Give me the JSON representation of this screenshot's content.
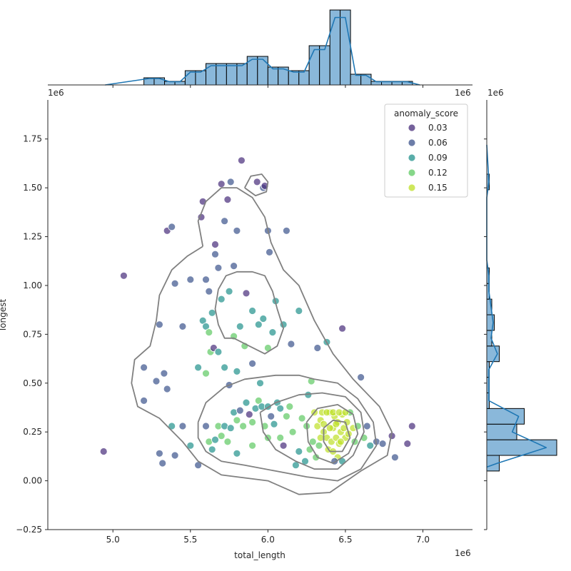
{
  "chart_data": {
    "type": "scatter",
    "kind": "jointplot",
    "xlabel": "total_length",
    "ylabel": "longest",
    "x_offset_label": "1e6",
    "y_offset_label": "1e6",
    "xlim": [
      4.58,
      7.32
    ],
    "ylim": [
      -0.25,
      1.95
    ],
    "x_ticks": [
      5.0,
      5.5,
      6.0,
      6.5,
      7.0
    ],
    "x_tick_labels": [
      "5.0",
      "5.5",
      "6.0",
      "6.5",
      "7.0"
    ],
    "y_ticks": [
      -0.25,
      0.0,
      0.25,
      0.5,
      0.75,
      1.0,
      1.25,
      1.5,
      1.75
    ],
    "y_tick_labels": [
      "−0.25",
      "0.00",
      "0.25",
      "0.50",
      "0.75",
      "1.00",
      "1.25",
      "1.50",
      "1.75"
    ],
    "hue_title": "anomaly_score",
    "legend_placement": "top-right",
    "legend": [
      {
        "label": "0.03",
        "color": "#472c7a"
      },
      {
        "label": "0.06",
        "color": "#3b528b"
      },
      {
        "label": "0.09",
        "color": "#21918c"
      },
      {
        "label": "0.12",
        "color": "#5ec962"
      },
      {
        "label": "0.15",
        "color": "#bddf26"
      }
    ],
    "points": [
      [
        4.94,
        0.15,
        0.03
      ],
      [
        5.07,
        1.05,
        0.03
      ],
      [
        5.3,
        0.8,
        0.06
      ],
      [
        5.35,
        1.28,
        0.03
      ],
      [
        5.38,
        1.3,
        0.06
      ],
      [
        5.4,
        1.01,
        0.06
      ],
      [
        5.45,
        0.79,
        0.06
      ],
      [
        5.5,
        1.03,
        0.06
      ],
      [
        5.57,
        1.35,
        0.03
      ],
      [
        5.58,
        1.43,
        0.03
      ],
      [
        5.6,
        1.03,
        0.06
      ],
      [
        5.62,
        0.97,
        0.06
      ],
      [
        5.64,
        0.86,
        0.09
      ],
      [
        5.66,
        1.16,
        0.06
      ],
      [
        5.66,
        1.21,
        0.03
      ],
      [
        5.68,
        1.09,
        0.06
      ],
      [
        5.7,
        1.52,
        0.03
      ],
      [
        5.72,
        1.33,
        0.06
      ],
      [
        5.74,
        1.44,
        0.03
      ],
      [
        5.76,
        1.53,
        0.06
      ],
      [
        5.78,
        1.1,
        0.06
      ],
      [
        5.8,
        1.28,
        0.06
      ],
      [
        5.83,
        1.64,
        0.03
      ],
      [
        5.86,
        0.96,
        0.03
      ],
      [
        5.93,
        1.53,
        0.03
      ],
      [
        5.97,
        1.5,
        0.06
      ],
      [
        5.98,
        1.51,
        0.03
      ],
      [
        6.0,
        1.28,
        0.06
      ],
      [
        6.01,
        1.17,
        0.06
      ],
      [
        6.12,
        1.28,
        0.06
      ],
      [
        5.7,
        0.93,
        0.09
      ],
      [
        5.75,
        0.97,
        0.09
      ],
      [
        5.78,
        0.74,
        0.12
      ],
      [
        5.82,
        0.79,
        0.09
      ],
      [
        5.85,
        0.69,
        0.12
      ],
      [
        5.9,
        0.87,
        0.09
      ],
      [
        5.94,
        0.8,
        0.09
      ],
      [
        5.97,
        0.83,
        0.09
      ],
      [
        6.0,
        0.68,
        0.12
      ],
      [
        6.03,
        0.76,
        0.09
      ],
      [
        6.05,
        0.92,
        0.09
      ],
      [
        6.1,
        0.8,
        0.09
      ],
      [
        6.15,
        0.7,
        0.06
      ],
      [
        6.2,
        0.87,
        0.09
      ],
      [
        6.32,
        0.68,
        0.06
      ],
      [
        6.38,
        0.71,
        0.09
      ],
      [
        6.48,
        0.78,
        0.03
      ],
      [
        5.58,
        0.82,
        0.09
      ],
      [
        5.6,
        0.79,
        0.09
      ],
      [
        5.62,
        0.76,
        0.12
      ],
      [
        5.63,
        0.66,
        0.12
      ],
      [
        5.65,
        0.68,
        0.03
      ],
      [
        5.68,
        0.66,
        0.09
      ],
      [
        5.72,
        0.58,
        0.09
      ],
      [
        5.75,
        0.49,
        0.06
      ],
      [
        5.8,
        0.56,
        0.09
      ],
      [
        5.9,
        0.6,
        0.06
      ],
      [
        5.95,
        0.5,
        0.09
      ],
      [
        5.2,
        0.58,
        0.06
      ],
      [
        5.2,
        0.41,
        0.06
      ],
      [
        5.28,
        0.51,
        0.06
      ],
      [
        5.33,
        0.55,
        0.06
      ],
      [
        5.35,
        0.47,
        0.06
      ],
      [
        5.3,
        0.14,
        0.06
      ],
      [
        5.32,
        0.09,
        0.06
      ],
      [
        5.38,
        0.28,
        0.09
      ],
      [
        5.4,
        0.13,
        0.06
      ],
      [
        5.45,
        0.28,
        0.06
      ],
      [
        5.5,
        0.18,
        0.09
      ],
      [
        5.55,
        0.08,
        0.06
      ],
      [
        5.55,
        0.58,
        0.09
      ],
      [
        5.6,
        0.55,
        0.12
      ],
      [
        5.6,
        0.28,
        0.06
      ],
      [
        5.62,
        0.2,
        0.12
      ],
      [
        5.64,
        0.16,
        0.09
      ],
      [
        5.66,
        0.21,
        0.09
      ],
      [
        5.68,
        0.28,
        0.12
      ],
      [
        5.7,
        0.23,
        0.12
      ],
      [
        5.72,
        0.28,
        0.09
      ],
      [
        5.74,
        0.2,
        0.12
      ],
      [
        5.76,
        0.27,
        0.09
      ],
      [
        5.78,
        0.35,
        0.09
      ],
      [
        5.8,
        0.31,
        0.12
      ],
      [
        5.8,
        0.14,
        0.09
      ],
      [
        5.82,
        0.36,
        0.06
      ],
      [
        5.84,
        0.28,
        0.12
      ],
      [
        5.86,
        0.4,
        0.09
      ],
      [
        5.88,
        0.34,
        0.03
      ],
      [
        5.9,
        0.3,
        0.12
      ],
      [
        5.9,
        0.18,
        0.12
      ],
      [
        5.92,
        0.37,
        0.09
      ],
      [
        5.94,
        0.41,
        0.12
      ],
      [
        5.96,
        0.38,
        0.09
      ],
      [
        5.98,
        0.28,
        0.12
      ],
      [
        6.0,
        0.38,
        0.09
      ],
      [
        6.0,
        0.22,
        0.12
      ],
      [
        6.02,
        0.33,
        0.06
      ],
      [
        6.04,
        0.29,
        0.09
      ],
      [
        6.06,
        0.4,
        0.09
      ],
      [
        6.08,
        0.37,
        0.09
      ],
      [
        6.08,
        0.22,
        0.12
      ],
      [
        6.1,
        0.18,
        0.03
      ],
      [
        6.12,
        0.33,
        0.12
      ],
      [
        6.14,
        0.38,
        0.12
      ],
      [
        6.16,
        0.25,
        0.12
      ],
      [
        6.18,
        0.08,
        0.09
      ],
      [
        6.2,
        0.15,
        0.09
      ],
      [
        6.22,
        0.32,
        0.12
      ],
      [
        6.24,
        0.1,
        0.09
      ],
      [
        6.26,
        0.44,
        0.09
      ],
      [
        6.28,
        0.51,
        0.12
      ],
      [
        6.3,
        0.35,
        0.15
      ],
      [
        6.32,
        0.28,
        0.15
      ],
      [
        6.34,
        0.31,
        0.15
      ],
      [
        6.36,
        0.25,
        0.15
      ],
      [
        6.38,
        0.22,
        0.15
      ],
      [
        6.4,
        0.35,
        0.15
      ],
      [
        6.41,
        0.2,
        0.15
      ],
      [
        6.42,
        0.27,
        0.15
      ],
      [
        6.43,
        0.33,
        0.15
      ],
      [
        6.44,
        0.22,
        0.15
      ],
      [
        6.45,
        0.3,
        0.15
      ],
      [
        6.46,
        0.19,
        0.15
      ],
      [
        6.47,
        0.25,
        0.15
      ],
      [
        6.48,
        0.34,
        0.15
      ],
      [
        6.49,
        0.27,
        0.15
      ],
      [
        6.5,
        0.22,
        0.15
      ],
      [
        6.51,
        0.3,
        0.15
      ],
      [
        6.52,
        0.24,
        0.15
      ],
      [
        6.53,
        0.35,
        0.12
      ],
      [
        6.55,
        0.27,
        0.15
      ],
      [
        6.56,
        0.2,
        0.12
      ],
      [
        6.58,
        0.28,
        0.12
      ],
      [
        6.6,
        0.53,
        0.06
      ],
      [
        6.62,
        0.22,
        0.12
      ],
      [
        6.64,
        0.28,
        0.06
      ],
      [
        6.66,
        0.18,
        0.09
      ],
      [
        6.7,
        0.2,
        0.06
      ],
      [
        6.74,
        0.19,
        0.06
      ],
      [
        6.8,
        0.23,
        0.03
      ],
      [
        6.82,
        0.12,
        0.06
      ],
      [
        6.9,
        0.19,
        0.03
      ],
      [
        6.93,
        0.28,
        0.03
      ],
      [
        6.34,
        0.22,
        0.15
      ],
      [
        6.36,
        0.29,
        0.15
      ],
      [
        6.39,
        0.16,
        0.15
      ],
      [
        6.4,
        0.27,
        0.15
      ],
      [
        6.42,
        0.15,
        0.15
      ],
      [
        6.44,
        0.29,
        0.15
      ],
      [
        6.45,
        0.12,
        0.15
      ],
      [
        6.47,
        0.2,
        0.15
      ],
      [
        6.33,
        0.18,
        0.12
      ],
      [
        6.31,
        0.12,
        0.12
      ],
      [
        6.29,
        0.2,
        0.12
      ],
      [
        6.27,
        0.16,
        0.12
      ],
      [
        6.25,
        0.28,
        0.12
      ],
      [
        6.35,
        0.35,
        0.15
      ],
      [
        6.38,
        0.35,
        0.15
      ],
      [
        6.42,
        0.35,
        0.15
      ],
      [
        6.46,
        0.35,
        0.15
      ],
      [
        6.5,
        0.35,
        0.15
      ],
      [
        6.43,
        0.1,
        0.06
      ],
      [
        6.48,
        0.1,
        0.09
      ]
    ],
    "kde_contours": [
      [
        [
          5.58,
          1.2
        ],
        [
          5.55,
          1.33
        ],
        [
          5.6,
          1.43
        ],
        [
          5.7,
          1.5
        ],
        [
          5.8,
          1.5
        ],
        [
          5.9,
          1.45
        ],
        [
          5.98,
          1.35
        ],
        [
          6.02,
          1.22
        ],
        [
          6.1,
          1.08
        ],
        [
          6.2,
          1.0
        ],
        [
          6.3,
          0.82
        ],
        [
          6.42,
          0.65
        ],
        [
          6.55,
          0.52
        ],
        [
          6.72,
          0.38
        ],
        [
          6.8,
          0.25
        ],
        [
          6.77,
          0.13
        ],
        [
          6.6,
          0.05
        ],
        [
          6.4,
          -0.06
        ],
        [
          6.2,
          -0.07
        ],
        [
          6.0,
          0.0
        ],
        [
          5.7,
          0.03
        ],
        [
          5.55,
          0.1
        ],
        [
          5.45,
          0.2
        ],
        [
          5.3,
          0.32
        ],
        [
          5.16,
          0.38
        ],
        [
          5.12,
          0.5
        ],
        [
          5.14,
          0.62
        ],
        [
          5.24,
          0.69
        ],
        [
          5.28,
          0.82
        ],
        [
          5.3,
          0.95
        ],
        [
          5.38,
          1.08
        ],
        [
          5.48,
          1.15
        ],
        [
          5.58,
          1.2
        ]
      ],
      [
        [
          5.68,
          0.98
        ],
        [
          5.73,
          1.05
        ],
        [
          5.8,
          1.07
        ],
        [
          5.9,
          1.07
        ],
        [
          5.98,
          1.05
        ],
        [
          6.03,
          0.97
        ],
        [
          6.06,
          0.88
        ],
        [
          6.1,
          0.78
        ],
        [
          6.06,
          0.69
        ],
        [
          5.98,
          0.65
        ],
        [
          5.88,
          0.69
        ],
        [
          5.78,
          0.73
        ],
        [
          5.72,
          0.73
        ],
        [
          5.68,
          0.8
        ],
        [
          5.66,
          0.88
        ],
        [
          5.68,
          0.98
        ]
      ],
      [
        [
          5.85,
          1.5
        ],
        [
          5.89,
          1.56
        ],
        [
          5.96,
          1.57
        ],
        [
          6.0,
          1.53
        ],
        [
          5.99,
          1.48
        ],
        [
          5.92,
          1.46
        ],
        [
          5.85,
          1.5
        ]
      ],
      [
        [
          5.55,
          0.3
        ],
        [
          5.6,
          0.4
        ],
        [
          5.72,
          0.48
        ],
        [
          5.85,
          0.52
        ],
        [
          6.05,
          0.54
        ],
        [
          6.2,
          0.54
        ],
        [
          6.3,
          0.52
        ],
        [
          6.45,
          0.5
        ],
        [
          6.58,
          0.42
        ],
        [
          6.68,
          0.3
        ],
        [
          6.7,
          0.18
        ],
        [
          6.6,
          0.06
        ],
        [
          6.45,
          0.0
        ],
        [
          6.25,
          0.02
        ],
        [
          6.05,
          0.05
        ],
        [
          5.85,
          0.08
        ],
        [
          5.7,
          0.1
        ],
        [
          5.6,
          0.15
        ],
        [
          5.55,
          0.22
        ],
        [
          5.55,
          0.3
        ]
      ],
      [
        [
          5.95,
          0.35
        ],
        [
          6.05,
          0.4
        ],
        [
          6.2,
          0.44
        ],
        [
          6.35,
          0.45
        ],
        [
          6.5,
          0.43
        ],
        [
          6.6,
          0.35
        ],
        [
          6.62,
          0.25
        ],
        [
          6.55,
          0.13
        ],
        [
          6.45,
          0.06
        ],
        [
          6.3,
          0.06
        ],
        [
          6.18,
          0.1
        ],
        [
          6.05,
          0.16
        ],
        [
          5.97,
          0.25
        ],
        [
          5.95,
          0.35
        ]
      ],
      [
        [
          6.25,
          0.3
        ],
        [
          6.32,
          0.37
        ],
        [
          6.45,
          0.39
        ],
        [
          6.55,
          0.34
        ],
        [
          6.58,
          0.24
        ],
        [
          6.52,
          0.14
        ],
        [
          6.42,
          0.09
        ],
        [
          6.32,
          0.12
        ],
        [
          6.26,
          0.2
        ],
        [
          6.25,
          0.3
        ]
      ],
      [
        [
          6.36,
          0.27
        ],
        [
          6.42,
          0.31
        ],
        [
          6.5,
          0.3
        ],
        [
          6.53,
          0.22
        ],
        [
          6.48,
          0.15
        ],
        [
          6.4,
          0.15
        ],
        [
          6.36,
          0.2
        ],
        [
          6.36,
          0.27
        ]
      ]
    ],
    "x_hist": {
      "bin_edges": [
        5.2,
        5.266,
        5.333,
        5.4,
        5.466,
        5.533,
        5.6,
        5.666,
        5.733,
        5.8,
        5.866,
        5.933,
        6.0,
        6.066,
        6.133,
        6.2,
        6.266,
        6.333,
        6.4,
        6.466,
        6.533,
        6.6,
        6.666,
        6.733,
        6.8,
        6.866,
        6.933
      ],
      "counts": [
        2,
        2,
        1,
        1,
        4,
        4,
        6,
        6,
        6,
        6,
        8,
        8,
        5,
        5,
        4,
        4,
        11,
        11,
        21,
        21,
        3,
        3,
        1,
        1,
        1,
        1
      ]
    },
    "y_hist": {
      "bin_edges": [
        0.05,
        0.13,
        0.21,
        0.29,
        0.37,
        0.45,
        0.53,
        0.61,
        0.69,
        0.77,
        0.85,
        0.93,
        1.01,
        1.09,
        1.17,
        1.25,
        1.33,
        1.41,
        1.49,
        1.57
      ],
      "counts": [
        5,
        28,
        12,
        15,
        1,
        1,
        1,
        5,
        2,
        3,
        2,
        1,
        1,
        0,
        0,
        0,
        0,
        0,
        1
      ]
    }
  }
}
